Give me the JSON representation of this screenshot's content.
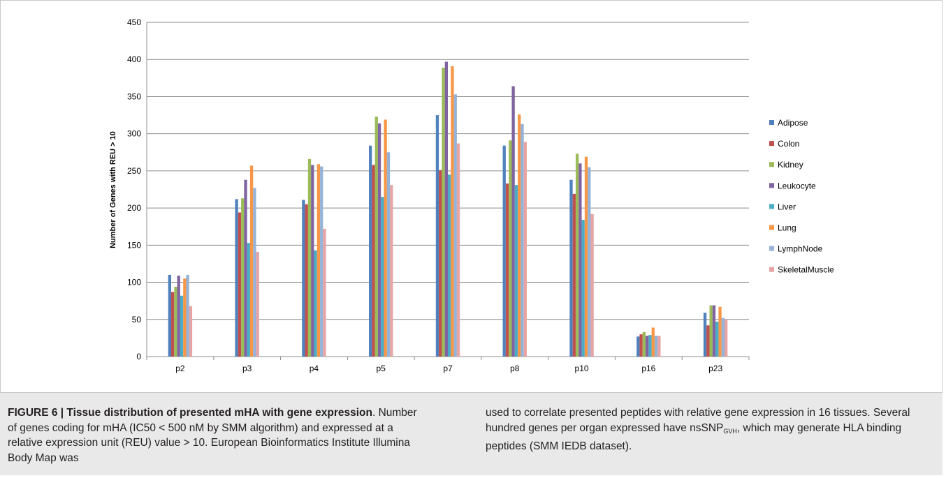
{
  "chart_data": {
    "type": "bar",
    "title": "",
    "xlabel": "",
    "ylabel": "Number of Genes  with REU > 10",
    "ylim": [
      0,
      450
    ],
    "yticks": [
      0,
      50,
      100,
      150,
      200,
      250,
      300,
      350,
      400,
      450
    ],
    "grid": true,
    "legend_position": "right",
    "categories": [
      "p2",
      "p3",
      "p4",
      "p5",
      "p7",
      "p8",
      "p10",
      "p16",
      "p23"
    ],
    "series": [
      {
        "name": "Adipose",
        "color": "#4f81bd",
        "values": [
          110,
          212,
          211,
          284,
          325,
          284,
          238,
          27,
          59
        ]
      },
      {
        "name": "Colon",
        "color": "#c0504d",
        "values": [
          87,
          194,
          205,
          258,
          251,
          233,
          219,
          30,
          42
        ]
      },
      {
        "name": "Kidney",
        "color": "#9bbb59",
        "values": [
          94,
          213,
          266,
          323,
          389,
          291,
          273,
          33,
          69
        ]
      },
      {
        "name": "Leukocyte",
        "color": "#8064a2",
        "values": [
          109,
          238,
          258,
          314,
          397,
          364,
          260,
          28,
          69
        ]
      },
      {
        "name": "Liver",
        "color": "#4bacc6",
        "values": [
          82,
          153,
          143,
          215,
          245,
          231,
          184,
          29,
          47
        ]
      },
      {
        "name": "Lung",
        "color": "#f79646",
        "values": [
          105,
          257,
          259,
          319,
          391,
          326,
          269,
          39,
          67
        ]
      },
      {
        "name": "LymphNode",
        "color": "#95b3d7",
        "values": [
          110,
          227,
          256,
          275,
          353,
          313,
          255,
          28,
          52
        ]
      },
      {
        "name": "SkeletalMuscle",
        "color": "#e6a5a4",
        "values": [
          68,
          141,
          172,
          231,
          287,
          289,
          192,
          28,
          50
        ]
      }
    ]
  },
  "caption": {
    "figure_label": "FIGURE 6 | Tissue distribution of presented mHA with gene expression",
    "left_text": ". Number of genes coding for mHA (IC50 < 500 nM by SMM algorithm) and expressed at a relative expression unit (REU) value > 10. European Bioinformatics Institute Illumina Body Map was",
    "right_text_1": "used to correlate presented peptides with relative gene expression in 16 tissues. Several hundred genes per organ expressed have nsSNP",
    "subscript": "GVH",
    "right_text_2": ", which may generate HLA binding peptides (SMM IEDB dataset)."
  }
}
